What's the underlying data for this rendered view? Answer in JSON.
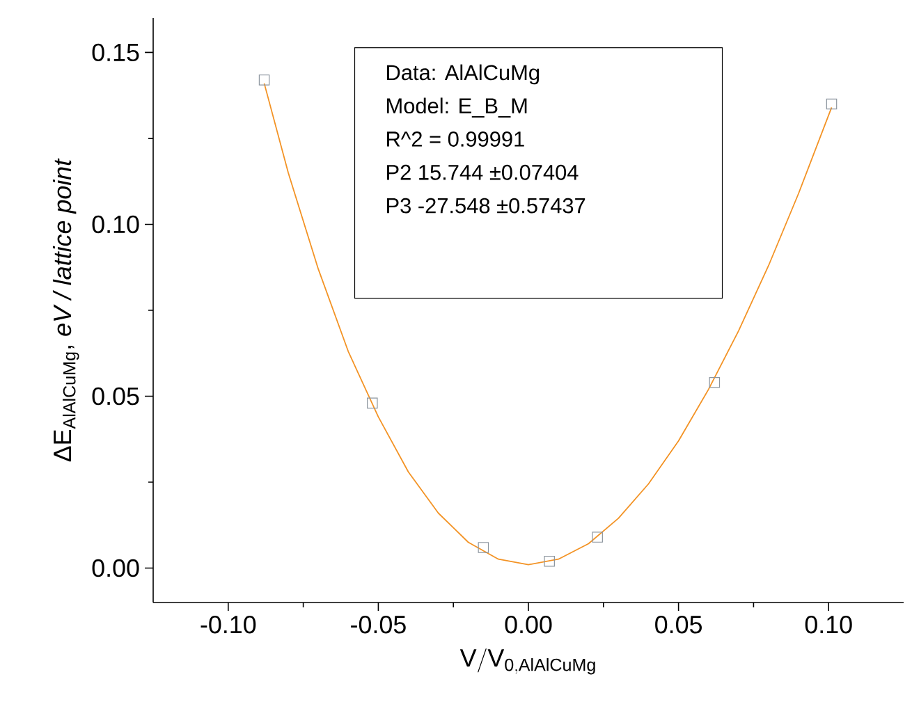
{
  "chart_data": {
    "type": "scatter",
    "xlabel": "\\mathsf{V/V_{0,AlAlCuMg}}",
    "ylabel": "ΔE$_{AlAlCuMg}$, *eV / lattice point*",
    "xlim": [
      -0.125,
      0.125
    ],
    "ylim": [
      -0.01,
      0.16
    ],
    "xticks": [
      {
        "value": -0.1,
        "label": "-0.10"
      },
      {
        "value": -0.05,
        "label": "-0.05"
      },
      {
        "value": 0,
        "label": "0.00"
      },
      {
        "value": 0.05,
        "label": "0.05"
      },
      {
        "value": 0.1,
        "label": "0.10"
      }
    ],
    "yticks": [
      {
        "value": 0,
        "label": "0.00"
      },
      {
        "value": 0.05,
        "label": "0.05"
      },
      {
        "value": 0.1,
        "label": "0.10"
      },
      {
        "value": 0.15,
        "label": "0.15"
      }
    ],
    "annotations": [
      "Data: AlAlCuMg",
      "Model: E_B_M",
      "R^2 = 0.99991",
      "P2 15.744 ±0.07404",
      "P3 -27.548 ±0.57437"
    ],
    "series": [
      {
        "marker": "square",
        "color": "#8c959e",
        "x": [
          -0.088,
          -0.052,
          -0.015,
          0.007,
          0.023,
          0.062,
          0.101
        ],
        "values": [
          0.142,
          0.048,
          0.006,
          0.002,
          0.009,
          0.054,
          0.135
        ]
      },
      {
        "type": "line",
        "marker": "none",
        "line_style": "solid",
        "color": "#f39325",
        "x": [
          -0.088,
          -0.08,
          -0.07,
          -0.06,
          -0.05,
          -0.04,
          -0.03,
          -0.02,
          -0.01,
          0,
          0.01,
          0.02,
          0.03,
          0.04,
          0.05,
          0.06,
          0.07,
          0.08,
          0.09,
          0.101
        ],
        "values": [
          0.141,
          0.115,
          0.087,
          0.063,
          0.044,
          0.028,
          0.016,
          0.0075,
          0.0026,
          0.001,
          0.0026,
          0.0071,
          0.0145,
          0.0245,
          0.037,
          0.052,
          0.069,
          0.088,
          0.109,
          0.134
        ]
      }
    ]
  }
}
